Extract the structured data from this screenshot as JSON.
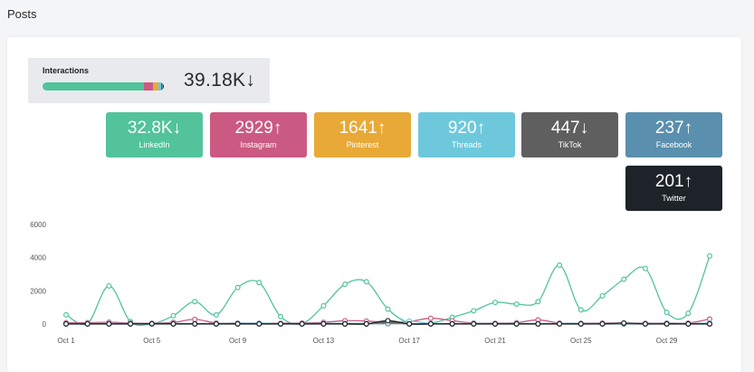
{
  "page": {
    "title": "Posts"
  },
  "interactions": {
    "label": "Interactions",
    "total": "39.18K",
    "trend": "↓",
    "breakdown": [
      {
        "value": 32800,
        "color": "#52c39a"
      },
      {
        "value": 2929,
        "color": "#cb5a82"
      },
      {
        "value": 1641,
        "color": "#e8a937"
      },
      {
        "value": 920,
        "color": "#6ec8dc"
      },
      {
        "value": 447,
        "color": "#5f5f5f"
      },
      {
        "value": 237,
        "color": "#5a8fad"
      },
      {
        "value": 201,
        "color": "#1e232a"
      }
    ]
  },
  "networks": [
    {
      "name": "LinkedIn",
      "value": "32.8K",
      "trend": "↓",
      "color": "#52c39a"
    },
    {
      "name": "Instagram",
      "value": "2929",
      "trend": "↑",
      "color": "#cb5a82"
    },
    {
      "name": "Pinterest",
      "value": "1641",
      "trend": "↑",
      "color": "#e8a937"
    },
    {
      "name": "Threads",
      "value": "920",
      "trend": "↑",
      "color": "#6ec8dc"
    },
    {
      "name": "TikTok",
      "value": "447",
      "trend": "↓",
      "color": "#5f5f5f"
    },
    {
      "name": "Facebook",
      "value": "237",
      "trend": "↑",
      "color": "#5a8fad"
    },
    {
      "name": "Twitter",
      "value": "201",
      "trend": "↑",
      "color": "#1e232a"
    }
  ],
  "chart_data": {
    "type": "line",
    "title": "",
    "xlabel": "",
    "ylabel": "",
    "ylim": [
      0,
      6000
    ],
    "yticks": [
      0,
      2000,
      4000,
      6000
    ],
    "ytick_labels": [
      "0",
      "2000",
      "4000",
      "6000"
    ],
    "x": [
      "Oct 1",
      "Oct 2",
      "Oct 3",
      "Oct 4",
      "Oct 5",
      "Oct 6",
      "Oct 7",
      "Oct 8",
      "Oct 9",
      "Oct 10",
      "Oct 11",
      "Oct 12",
      "Oct 13",
      "Oct 14",
      "Oct 15",
      "Oct 16",
      "Oct 17",
      "Oct 18",
      "Oct 19",
      "Oct 20",
      "Oct 21",
      "Oct 22",
      "Oct 23",
      "Oct 24",
      "Oct 25",
      "Oct 26",
      "Oct 27",
      "Oct 28",
      "Oct 29",
      "Oct 30",
      "Oct 31"
    ],
    "xtick_labels": [
      "Oct 1",
      "Oct 5",
      "Oct 9",
      "Oct 13",
      "Oct 17",
      "Oct 21",
      "Oct 25",
      "Oct 29"
    ],
    "grid": false,
    "legend": "none",
    "series": [
      {
        "color": "#52c39a",
        "values": [
          550,
          30,
          2300,
          150,
          20,
          500,
          1350,
          550,
          2200,
          2500,
          450,
          30,
          1100,
          2400,
          2550,
          900,
          60,
          50,
          400,
          800,
          1300,
          1200,
          1350,
          3550,
          850,
          1700,
          2700,
          3350,
          700,
          650,
          4100
        ]
      },
      {
        "color": "#cb5a82",
        "values": [
          80,
          80,
          110,
          60,
          50,
          100,
          280,
          60,
          60,
          50,
          50,
          60,
          100,
          200,
          180,
          100,
          150,
          350,
          200,
          60,
          50,
          80,
          250,
          60,
          50,
          60,
          50,
          50,
          60,
          60,
          300
        ]
      },
      {
        "color": "#e8a937",
        "values": [
          20,
          20,
          20,
          20,
          20,
          20,
          20,
          20,
          20,
          20,
          20,
          20,
          20,
          20,
          20,
          20,
          20,
          20,
          20,
          20,
          20,
          20,
          20,
          20,
          20,
          20,
          20,
          20,
          20,
          20,
          20
        ]
      },
      {
        "color": "#6ec8dc",
        "values": [
          30,
          30,
          40,
          30,
          30,
          40,
          30,
          30,
          40,
          50,
          30,
          30,
          40,
          40,
          40,
          30,
          180,
          30,
          30,
          40,
          30,
          40,
          30,
          40,
          40,
          30,
          30,
          30,
          40,
          30,
          60
        ]
      },
      {
        "color": "#5f5f5f",
        "values": [
          0,
          0,
          0,
          0,
          0,
          0,
          0,
          0,
          0,
          0,
          0,
          0,
          0,
          0,
          0,
          100,
          0,
          0,
          0,
          0,
          0,
          0,
          0,
          0,
          0,
          0,
          0,
          0,
          0,
          0,
          0
        ]
      },
      {
        "color": "#5a8fad",
        "values": [
          20,
          20,
          20,
          20,
          20,
          20,
          20,
          20,
          20,
          20,
          20,
          20,
          20,
          20,
          20,
          20,
          20,
          20,
          20,
          20,
          20,
          20,
          20,
          20,
          20,
          20,
          20,
          20,
          20,
          20,
          20
        ]
      },
      {
        "color": "#1e232a",
        "values": [
          10,
          10,
          10,
          10,
          20,
          10,
          10,
          10,
          10,
          10,
          10,
          10,
          10,
          10,
          10,
          200,
          10,
          10,
          10,
          10,
          10,
          10,
          10,
          10,
          10,
          10,
          60,
          10,
          10,
          10,
          10
        ]
      }
    ]
  }
}
